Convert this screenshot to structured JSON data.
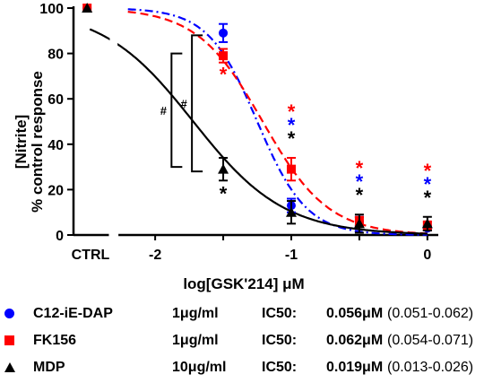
{
  "chart_data": {
    "type": "line",
    "xlabel": "log[GSK'214] μM",
    "ylabel_lines": [
      "[Nitrite]",
      "% control response"
    ],
    "xlim": [
      -2.6,
      0.08
    ],
    "ylim": [
      0,
      100
    ],
    "x_ticks": [
      -2,
      -1.5,
      -1,
      -0.5,
      0
    ],
    "x_tick_labels": [
      {
        "x": -2,
        "label": "-2"
      },
      {
        "x": -1,
        "label": "-1"
      },
      {
        "x": 0,
        "label": "0"
      }
    ],
    "y_ticks": [
      0,
      20,
      40,
      60,
      80,
      100
    ],
    "y_tick_labels": [
      "0",
      "20",
      "40",
      "60",
      "80",
      "100"
    ],
    "ctrl_label": "CTRL",
    "ctrl_x": -2.5,
    "series": [
      {
        "name": "C12-iE-DAP",
        "color": "#0000ff",
        "marker": "circle",
        "line_style": "dash-dot",
        "ctrl_value": 100,
        "points": [
          {
            "x": -1.5,
            "y": 89,
            "err": 4
          },
          {
            "x": -1,
            "y": 13,
            "err": 3
          },
          {
            "x": -0.5,
            "y": 6,
            "err": 2
          },
          {
            "x": 0,
            "y": 3,
            "err": 1
          }
        ],
        "fit": {
          "top": 100,
          "bottom": 0,
          "log_ic50": -1.25,
          "hill": -2.4
        },
        "stars": [
          {
            "x": -1,
            "row": 1
          },
          {
            "x": -0.5,
            "row": 1
          },
          {
            "x": 0,
            "row": 1
          }
        ]
      },
      {
        "name": "FK156",
        "color": "#ff0000",
        "marker": "square",
        "line_style": "dash",
        "ctrl_value": 100,
        "points": [
          {
            "x": -1.5,
            "y": 79,
            "err": 3
          },
          {
            "x": -1,
            "y": 29,
            "err": 5
          },
          {
            "x": -0.5,
            "y": 6,
            "err": 2
          },
          {
            "x": 0,
            "y": 4,
            "err": 2
          }
        ],
        "fit": {
          "top": 100,
          "bottom": 0,
          "log_ic50": -1.21,
          "hill": -1.8
        },
        "stars": [
          {
            "x": -1.5,
            "row": 0
          },
          {
            "x": -1,
            "row": 0
          },
          {
            "x": -0.5,
            "row": 0
          },
          {
            "x": 0,
            "row": 0
          }
        ]
      },
      {
        "name": "MDP",
        "color": "#000000",
        "marker": "triangle",
        "line_style": "solid",
        "ctrl_value": 100,
        "points": [
          {
            "x": -1.5,
            "y": 29,
            "err": 5
          },
          {
            "x": -1,
            "y": 10,
            "err": 5
          },
          {
            "x": -0.5,
            "y": 5,
            "err": 4
          },
          {
            "x": 0,
            "y": 5,
            "err": 3
          }
        ],
        "fit": {
          "top": 100,
          "bottom": 0,
          "log_ic50": -1.72,
          "hill": -1.3
        },
        "stars": [
          {
            "x": -1.5,
            "row": -1
          },
          {
            "x": -1,
            "row": 2
          },
          {
            "x": -0.5,
            "row": 2
          },
          {
            "x": 0,
            "row": 2
          }
        ]
      }
    ],
    "annotations": [
      {
        "label": "#",
        "bracket_x": -1.88,
        "y_low": 30,
        "y_high": 80
      },
      {
        "label": "#",
        "bracket_x": -1.73,
        "y_low": 28,
        "y_high": 88
      }
    ],
    "star_glyph": "*"
  },
  "legend": [
    {
      "name": "C12-iE-DAP",
      "concentration": "1μg/ml",
      "ic50_label": "IC50:",
      "ic50": "0.056μM",
      "ci": "(0.051-0.062)",
      "color": "#0000ff",
      "marker": "circle"
    },
    {
      "name": "FK156",
      "concentration": "1μg/ml",
      "ic50_label": "IC50:",
      "ic50": "0.062μM",
      "ci": "(0.054-0.071)",
      "color": "#ff0000",
      "marker": "square"
    },
    {
      "name": "MDP",
      "concentration": "10μg/ml",
      "ic50_label": "IC50:",
      "ic50": "0.019μM",
      "ci": "(0.013-0.026)",
      "color": "#000000",
      "marker": "triangle"
    }
  ]
}
